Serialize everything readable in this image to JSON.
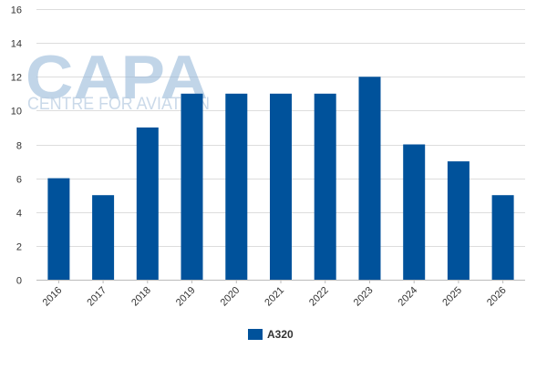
{
  "watermark": {
    "brand": "CAPA",
    "tagline": "CENTRE FOR AVIATION"
  },
  "chart_data": {
    "type": "bar",
    "categories": [
      "2016",
      "2017",
      "2018",
      "2019",
      "2020",
      "2021",
      "2022",
      "2023",
      "2024",
      "2025",
      "2026"
    ],
    "series": [
      {
        "name": "A320",
        "values": [
          6,
          5,
          9,
          11,
          11,
          11,
          11,
          12,
          8,
          7,
          5
        ],
        "color": "#00529b"
      }
    ],
    "ylim": [
      0,
      16
    ],
    "yticks": [
      0,
      2,
      4,
      6,
      8,
      10,
      12,
      14,
      16
    ],
    "grid": true,
    "legend": "bottom-center"
  }
}
